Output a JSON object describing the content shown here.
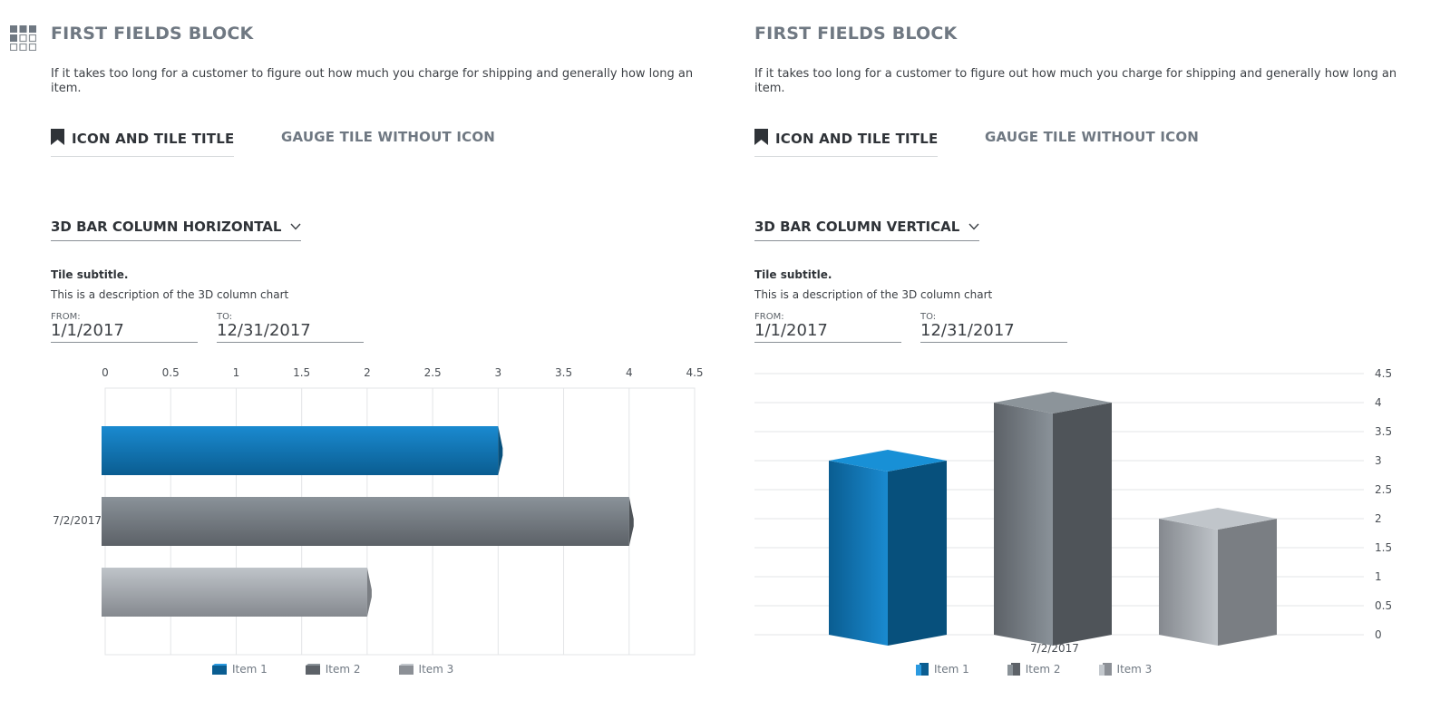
{
  "icons": {
    "grid": "grid-icon",
    "bookmark": "bookmark-icon",
    "chevron": "chevron-down-icon"
  },
  "colors": {
    "blue": "#0d7fc4",
    "dark_gray": "#6a7077",
    "light_gray": "#b9bec4"
  },
  "panels": [
    {
      "block_title": "FIRST FIELDS BLOCK",
      "block_desc": "If it takes too long for a customer to figure out how much you charge for shipping and generally how long an item.",
      "tabs": [
        {
          "label": "ICON AND TILE TITLE"
        },
        {
          "label": "GAUGE TILE WITHOUT ICON"
        }
      ],
      "dropdown_label": "3D BAR COLUMN HORIZONTAL",
      "subtitle": "Tile subtitle.",
      "subdesc": "This is a description of the 3D column chart",
      "from_label": "FROM:",
      "from_value": "1/1/2017",
      "to_label": "TO:",
      "to_value": "12/31/2017",
      "legend": [
        "Item 1",
        "Item 2",
        "Item 3"
      ]
    },
    {
      "block_title": "FIRST FIELDS BLOCK",
      "block_desc": "If it takes too long for a customer to figure out how much you charge for shipping and generally how long an item.",
      "tabs": [
        {
          "label": "ICON AND TILE TITLE"
        },
        {
          "label": "GAUGE TILE WITHOUT ICON"
        }
      ],
      "dropdown_label": "3D BAR COLUMN VERTICAL",
      "subtitle": "Tile subtitle.",
      "subdesc": "This is a description of the 3D column chart",
      "from_label": "FROM:",
      "from_value": "1/1/2017",
      "to_label": "TO:",
      "to_value": "12/31/2017",
      "legend": [
        "Item 1",
        "Item 2",
        "Item 3"
      ]
    }
  ],
  "chart_data": [
    {
      "type": "bar",
      "orientation": "horizontal",
      "categories": [
        "7/2/2017"
      ],
      "series": [
        {
          "name": "Item 1",
          "values": [
            3
          ]
        },
        {
          "name": "Item 2",
          "values": [
            4
          ]
        },
        {
          "name": "Item 3",
          "values": [
            2
          ]
        }
      ],
      "xlim": [
        0,
        4.5
      ],
      "ticks": [
        "0",
        "0.5",
        "1",
        "1.5",
        "2",
        "2.5",
        "3",
        "3.5",
        "4",
        "4.5"
      ],
      "grid": true,
      "legend_position": "bottom"
    },
    {
      "type": "bar",
      "orientation": "vertical",
      "categories": [
        "7/2/2017"
      ],
      "series": [
        {
          "name": "Item 1",
          "values": [
            3
          ]
        },
        {
          "name": "Item 2",
          "values": [
            4
          ]
        },
        {
          "name": "Item 3",
          "values": [
            2
          ]
        }
      ],
      "ylim": [
        0,
        4.5
      ],
      "ticks": [
        "0",
        "0.5",
        "1",
        "1.5",
        "2",
        "2.5",
        "3",
        "3.5",
        "4",
        "4.5"
      ],
      "grid": true,
      "legend_position": "bottom"
    }
  ]
}
